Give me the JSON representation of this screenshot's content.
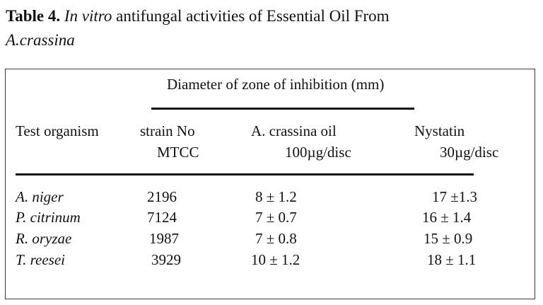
{
  "caption": {
    "label": "Table 4.",
    "italic_phrase": "In vitro",
    "text_line1": "antifungal activities of Essential Oil From",
    "species": "A.crassina"
  },
  "table": {
    "spanner": "Diameter of zone of inhibition (mm)",
    "headers": {
      "organism": "Test organism",
      "strain_line1": "strain No",
      "strain_line2": "MTCC",
      "oil_line1": "A. crassina oil",
      "oil_line2": "100µg/disc",
      "nystatin_line1": "Nystatin",
      "nystatin_line2": "30µg/disc"
    },
    "rows": [
      {
        "organism": "A. niger",
        "strain": "2196",
        "oil": "8 ± 1.2",
        "nystatin": "17 ±1.3"
      },
      {
        "organism": "P. citrinum",
        "strain": "7124",
        "oil": "7 ± 0.7",
        "nystatin": "16 ± 1.4"
      },
      {
        "organism": "R. oryzae",
        "strain": "1987",
        "oil": "7 ± 0.8",
        "nystatin": "15 ± 0.9"
      },
      {
        "organism": "T. reesei",
        "strain": "3929",
        "oil": "10 ± 1.2",
        "nystatin": "18 ± 1.1"
      }
    ]
  }
}
